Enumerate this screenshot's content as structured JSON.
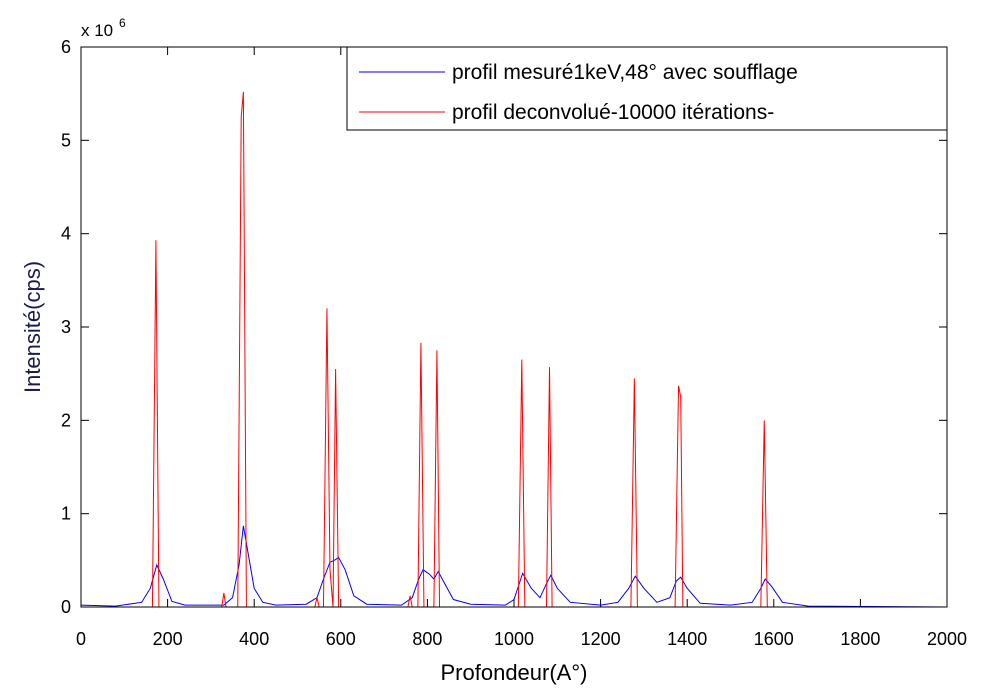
{
  "chart_data": {
    "type": "line",
    "xlabel": "Profondeur(A°)",
    "ylabel": "Intensité(cps)",
    "multiplier_base": "x 10",
    "multiplier_exponent": "6",
    "xlim": [
      0,
      2000
    ],
    "xticks": [
      0,
      200,
      400,
      600,
      800,
      1000,
      1200,
      1400,
      1600,
      1800,
      2000
    ],
    "ylim": [
      0,
      6
    ],
    "yticks": [
      0,
      1,
      2,
      3,
      4,
      5,
      6
    ],
    "legend": "top-right",
    "series": [
      {
        "name": "profil mesuré1keV,48° avec soufflage",
        "color": "#0000ff",
        "x": [
          0,
          80,
          140,
          160,
          175,
          190,
          210,
          240,
          330,
          350,
          365,
          375,
          385,
          400,
          420,
          450,
          520,
          545,
          560,
          575,
          585,
          595,
          610,
          630,
          660,
          740,
          765,
          780,
          790,
          805,
          815,
          825,
          840,
          860,
          900,
          980,
          1000,
          1020,
          1040,
          1060,
          1075,
          1085,
          1100,
          1130,
          1200,
          1240,
          1265,
          1280,
          1300,
          1330,
          1360,
          1375,
          1385,
          1400,
          1430,
          1500,
          1550,
          1570,
          1580,
          1595,
          1620,
          1680,
          2000
        ],
        "values": [
          0.02,
          0.01,
          0.05,
          0.2,
          0.45,
          0.3,
          0.06,
          0.02,
          0.02,
          0.1,
          0.45,
          0.87,
          0.6,
          0.2,
          0.05,
          0.02,
          0.03,
          0.1,
          0.3,
          0.48,
          0.5,
          0.53,
          0.4,
          0.12,
          0.03,
          0.02,
          0.1,
          0.3,
          0.4,
          0.35,
          0.3,
          0.38,
          0.25,
          0.08,
          0.03,
          0.02,
          0.08,
          0.36,
          0.2,
          0.1,
          0.25,
          0.34,
          0.2,
          0.05,
          0.02,
          0.05,
          0.2,
          0.33,
          0.2,
          0.05,
          0.1,
          0.28,
          0.32,
          0.2,
          0.04,
          0.02,
          0.05,
          0.2,
          0.3,
          0.22,
          0.05,
          0.01,
          0
        ]
      },
      {
        "name": "profil deconvolué-10000 itérations-",
        "color": "#ff0000",
        "x": [
          0,
          165,
          173,
          180,
          325,
          330,
          335,
          362,
          370,
          375,
          382,
          540,
          545,
          550,
          560,
          568,
          575,
          582,
          588,
          595,
          755,
          760,
          765,
          778,
          785,
          792,
          815,
          822,
          828,
          1010,
          1018,
          1025,
          1075,
          1082,
          1088,
          1270,
          1278,
          1285,
          1372,
          1380,
          1385,
          1390,
          1570,
          1578,
          1585,
          2000
        ],
        "values": [
          0,
          0,
          3.93,
          0,
          0,
          0.15,
          0,
          0,
          5.25,
          5.52,
          0,
          0,
          0.1,
          0,
          0,
          3.2,
          0.4,
          0,
          2.55,
          0,
          0,
          0.12,
          0,
          0,
          2.83,
          0,
          0,
          2.75,
          0,
          0,
          2.65,
          0,
          0,
          2.57,
          0,
          0,
          2.45,
          0,
          0,
          2.37,
          2.25,
          0,
          0,
          2.0,
          0,
          0
        ]
      }
    ]
  }
}
